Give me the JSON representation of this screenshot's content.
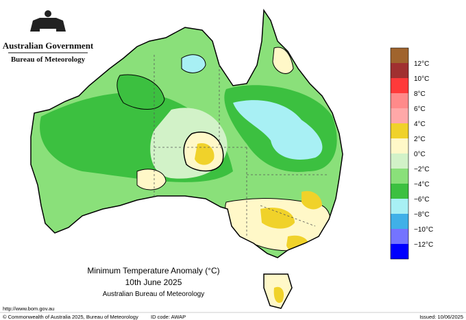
{
  "header": {
    "government": "Australian Government",
    "agency": "Bureau of Meteorology"
  },
  "map": {
    "title": "Minimum Temperature Anomaly (°C)",
    "date": "10th June 2025",
    "source": "Australian Bureau of Meteorology"
  },
  "legend": {
    "colors": [
      "#a0642d",
      "#a03030",
      "#ff3a3a",
      "#ff8a8a",
      "#ffa8a8",
      "#f0d22a",
      "#fff8c8",
      "#d2f2c8",
      "#8ae07a",
      "#3cc040",
      "#a8f0f4",
      "#40b0e8",
      "#7474ff",
      "#0000ff"
    ],
    "labels": [
      "12°C",
      "10°C",
      "8°C",
      "6°C",
      "4°C",
      "2°C",
      "0°C",
      "−2°C",
      "−4°C",
      "−6°C",
      "−8°C",
      "−10°C",
      "−12°C"
    ]
  },
  "footer": {
    "url": "http://www.bom.gov.au",
    "copyright": "© Commonwealth of Australia 2025, Bureau of Meteorology",
    "id_code": "ID code: AWAP",
    "issued": "Issued: 10/06/2025"
  }
}
